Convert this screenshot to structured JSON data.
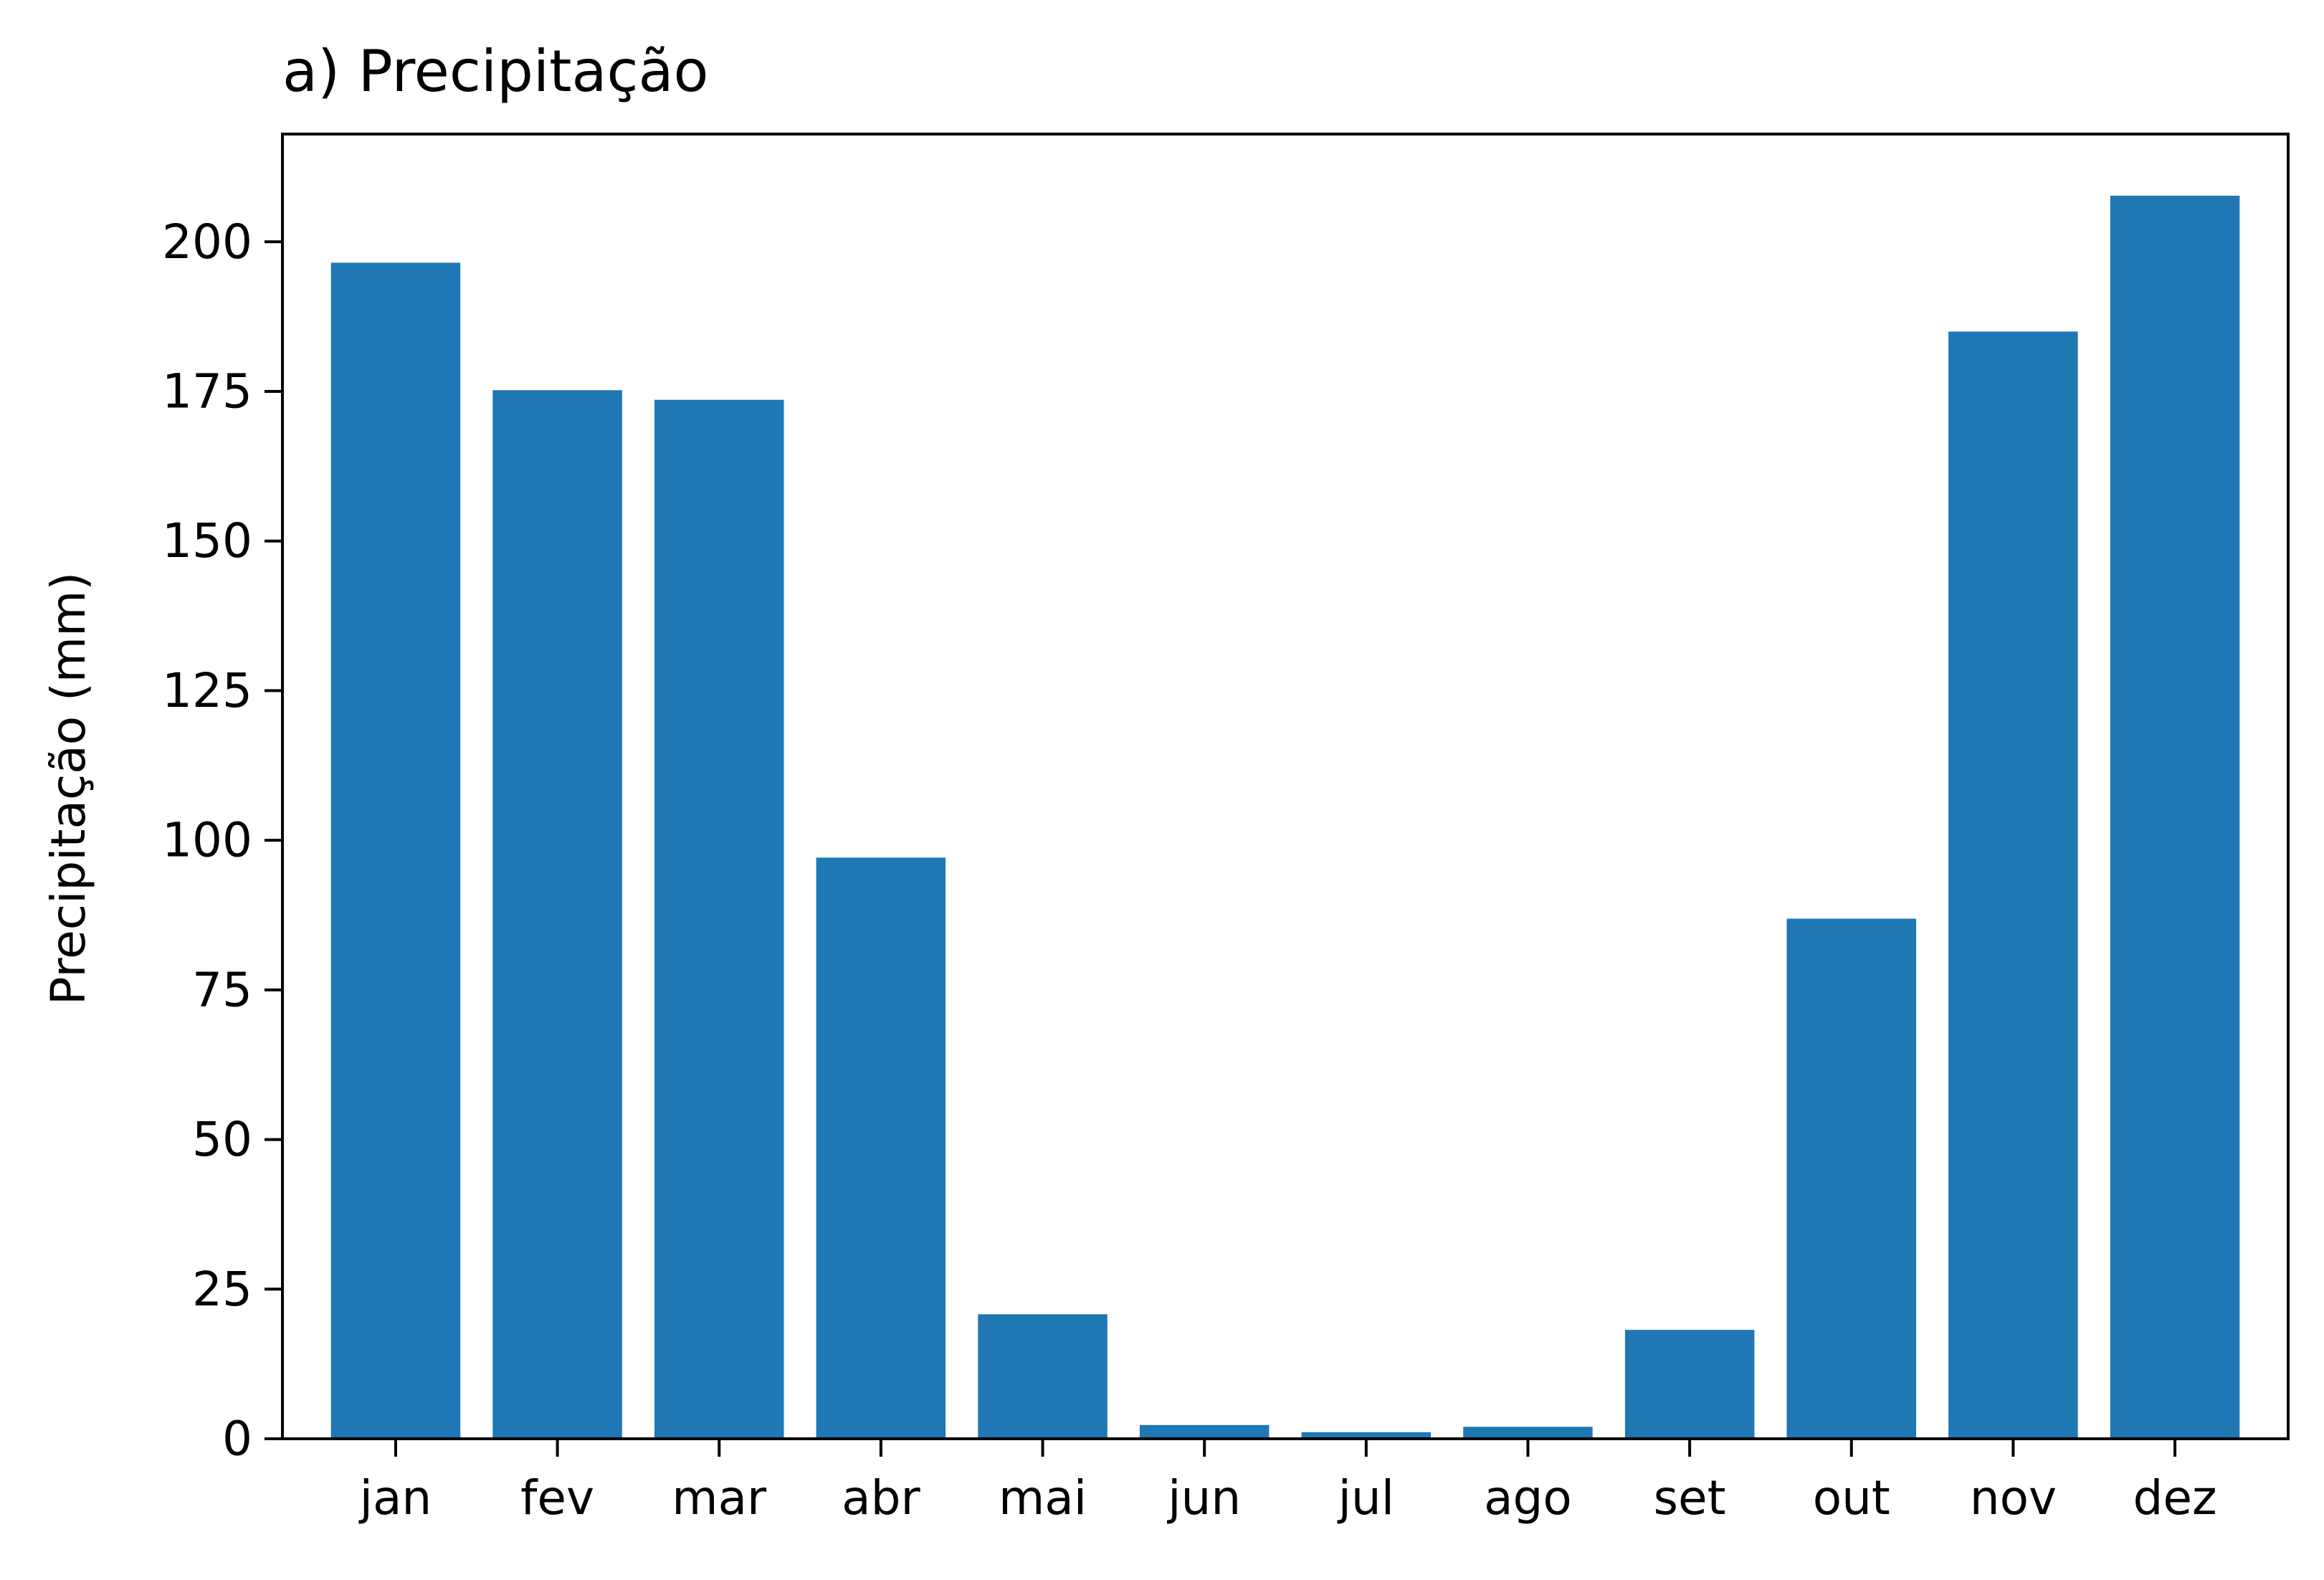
{
  "chart_data": {
    "type": "bar",
    "title": "a) Precipitação",
    "xlabel": "",
    "ylabel": "Precipitação (mm)",
    "categories": [
      "jan",
      "fev",
      "mar",
      "abr",
      "mai",
      "jun",
      "jul",
      "ago",
      "set",
      "out",
      "nov",
      "dez"
    ],
    "values": [
      196.5,
      175.2,
      173.6,
      97.1,
      20.8,
      2.3,
      1.1,
      2.0,
      18.2,
      86.9,
      185.0,
      207.7
    ],
    "ylim": [
      0,
      218
    ],
    "yticks": [
      "0",
      "25",
      "50",
      "75",
      "100",
      "125",
      "150",
      "175",
      "200"
    ],
    "grid": false,
    "legend": "none",
    "bar_color": "#1f77b4",
    "frame_color": "#000000"
  }
}
